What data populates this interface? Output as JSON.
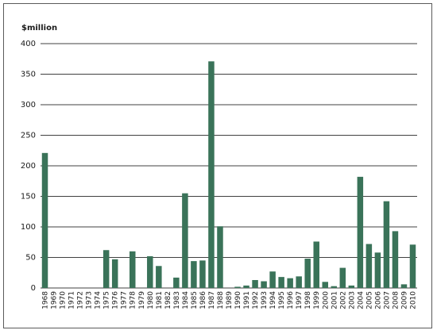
{
  "chart_data": {
    "type": "bar",
    "ylabel": "$million",
    "ylim": [
      0,
      400
    ],
    "yticks": [
      "0",
      "50",
      "100",
      "150",
      "200",
      "250",
      "300",
      "350",
      "400"
    ],
    "grid": "horizontal",
    "bar_color": "#3a7359",
    "categories": [
      "1968",
      "1969",
      "1970",
      "1971",
      "1972",
      "1973",
      "1974",
      "1975",
      "1976",
      "1977",
      "1978",
      "1979",
      "1980",
      "1981",
      "1982",
      "1983",
      "1984",
      "1985",
      "1986",
      "1987",
      "1988",
      "1989",
      "1990",
      "1991",
      "1992",
      "1993",
      "1994",
      "1995",
      "1996",
      "1997",
      "1998",
      "1999",
      "2000",
      "2001",
      "2002",
      "2003",
      "2004",
      "2005",
      "2006",
      "2007",
      "2008",
      "2009",
      "2010"
    ],
    "values": [
      221,
      0,
      0,
      0,
      0,
      0,
      0,
      62,
      47,
      0,
      60,
      0,
      52,
      36,
      0,
      17,
      155,
      44,
      45,
      371,
      101,
      0,
      2,
      4,
      13,
      11,
      27,
      18,
      16,
      19,
      48,
      76,
      10,
      3,
      33,
      4,
      182,
      72,
      58,
      142,
      93,
      6,
      71
    ]
  }
}
